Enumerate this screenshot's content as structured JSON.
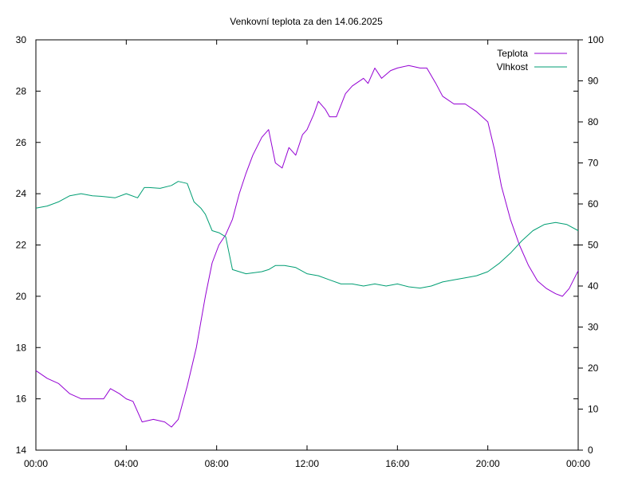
{
  "chart_data": {
    "type": "line",
    "title": "Venkovní teplota za den 14.06.2025",
    "x_ticks": [
      "00:00",
      "04:00",
      "08:00",
      "12:00",
      "16:00",
      "20:00",
      "00:00"
    ],
    "x_range_hours": [
      0,
      24
    ],
    "y_left": {
      "min": 14,
      "max": 30,
      "ticks": [
        "14",
        "16",
        "18",
        "20",
        "22",
        "24",
        "26",
        "28",
        "30"
      ]
    },
    "y_right": {
      "min": 0,
      "max": 100,
      "ticks": [
        "0",
        "10",
        "20",
        "30",
        "40",
        "50",
        "60",
        "70",
        "80",
        "90",
        "100"
      ]
    },
    "grid": false,
    "legend_position": "top-right",
    "series": [
      {
        "name": "Teplota",
        "axis": "left",
        "color": "#9400d3",
        "points": [
          [
            0.0,
            17.1
          ],
          [
            0.5,
            16.8
          ],
          [
            1.0,
            16.6
          ],
          [
            1.5,
            16.2
          ],
          [
            2.0,
            16.0
          ],
          [
            2.5,
            16.0
          ],
          [
            3.0,
            16.0
          ],
          [
            3.3,
            16.4
          ],
          [
            3.7,
            16.2
          ],
          [
            4.0,
            16.0
          ],
          [
            4.3,
            15.9
          ],
          [
            4.7,
            15.1
          ],
          [
            5.2,
            15.2
          ],
          [
            5.7,
            15.1
          ],
          [
            6.0,
            14.9
          ],
          [
            6.3,
            15.2
          ],
          [
            6.7,
            16.5
          ],
          [
            7.1,
            18.0
          ],
          [
            7.5,
            20.0
          ],
          [
            7.8,
            21.3
          ],
          [
            8.1,
            22.0
          ],
          [
            8.4,
            22.4
          ],
          [
            8.7,
            23.0
          ],
          [
            9.0,
            24.0
          ],
          [
            9.3,
            24.8
          ],
          [
            9.6,
            25.5
          ],
          [
            10.0,
            26.2
          ],
          [
            10.3,
            26.5
          ],
          [
            10.6,
            25.2
          ],
          [
            10.9,
            25.0
          ],
          [
            11.2,
            25.8
          ],
          [
            11.5,
            25.5
          ],
          [
            11.8,
            26.3
          ],
          [
            12.0,
            26.5
          ],
          [
            12.3,
            27.1
          ],
          [
            12.5,
            27.6
          ],
          [
            12.8,
            27.3
          ],
          [
            13.0,
            27.0
          ],
          [
            13.3,
            27.0
          ],
          [
            13.7,
            27.9
          ],
          [
            14.0,
            28.2
          ],
          [
            14.5,
            28.5
          ],
          [
            14.7,
            28.3
          ],
          [
            15.0,
            28.9
          ],
          [
            15.3,
            28.5
          ],
          [
            15.7,
            28.8
          ],
          [
            16.0,
            28.9
          ],
          [
            16.5,
            29.0
          ],
          [
            17.0,
            28.9
          ],
          [
            17.3,
            28.9
          ],
          [
            17.7,
            28.3
          ],
          [
            18.0,
            27.8
          ],
          [
            18.5,
            27.5
          ],
          [
            19.0,
            27.5
          ],
          [
            19.5,
            27.2
          ],
          [
            20.0,
            26.8
          ],
          [
            20.3,
            25.7
          ],
          [
            20.6,
            24.3
          ],
          [
            21.0,
            23.0
          ],
          [
            21.4,
            22.0
          ],
          [
            21.8,
            21.2
          ],
          [
            22.2,
            20.6
          ],
          [
            22.6,
            20.3
          ],
          [
            23.0,
            20.1
          ],
          [
            23.3,
            20.0
          ],
          [
            23.6,
            20.3
          ],
          [
            24.0,
            21.0
          ]
        ]
      },
      {
        "name": "Vlhkost",
        "axis": "right",
        "color": "#009e73",
        "points": [
          [
            0.0,
            59.0
          ],
          [
            0.5,
            59.5
          ],
          [
            1.0,
            60.5
          ],
          [
            1.5,
            62.0
          ],
          [
            2.0,
            62.5
          ],
          [
            2.5,
            62.0
          ],
          [
            3.0,
            61.8
          ],
          [
            3.5,
            61.5
          ],
          [
            4.0,
            62.5
          ],
          [
            4.5,
            61.5
          ],
          [
            4.8,
            64.0
          ],
          [
            5.0,
            64.0
          ],
          [
            5.5,
            63.8
          ],
          [
            6.0,
            64.5
          ],
          [
            6.3,
            65.5
          ],
          [
            6.7,
            65.0
          ],
          [
            7.0,
            60.5
          ],
          [
            7.3,
            59.0
          ],
          [
            7.5,
            57.5
          ],
          [
            7.8,
            53.5
          ],
          [
            8.1,
            53.0
          ],
          [
            8.4,
            52.0
          ],
          [
            8.7,
            44.0
          ],
          [
            9.0,
            43.5
          ],
          [
            9.3,
            43.0
          ],
          [
            9.6,
            43.2
          ],
          [
            10.0,
            43.5
          ],
          [
            10.3,
            44.0
          ],
          [
            10.6,
            45.0
          ],
          [
            11.0,
            45.0
          ],
          [
            11.5,
            44.5
          ],
          [
            12.0,
            43.0
          ],
          [
            12.5,
            42.5
          ],
          [
            13.0,
            41.5
          ],
          [
            13.5,
            40.5
          ],
          [
            14.0,
            40.5
          ],
          [
            14.5,
            40.0
          ],
          [
            15.0,
            40.5
          ],
          [
            15.5,
            40.0
          ],
          [
            16.0,
            40.5
          ],
          [
            16.5,
            39.8
          ],
          [
            17.0,
            39.5
          ],
          [
            17.5,
            40.0
          ],
          [
            18.0,
            41.0
          ],
          [
            18.5,
            41.5
          ],
          [
            19.0,
            42.0
          ],
          [
            19.5,
            42.5
          ],
          [
            20.0,
            43.5
          ],
          [
            20.5,
            45.5
          ],
          [
            21.0,
            48.0
          ],
          [
            21.5,
            51.0
          ],
          [
            22.0,
            53.5
          ],
          [
            22.5,
            55.0
          ],
          [
            23.0,
            55.5
          ],
          [
            23.5,
            55.0
          ],
          [
            24.0,
            53.5
          ]
        ]
      }
    ]
  }
}
